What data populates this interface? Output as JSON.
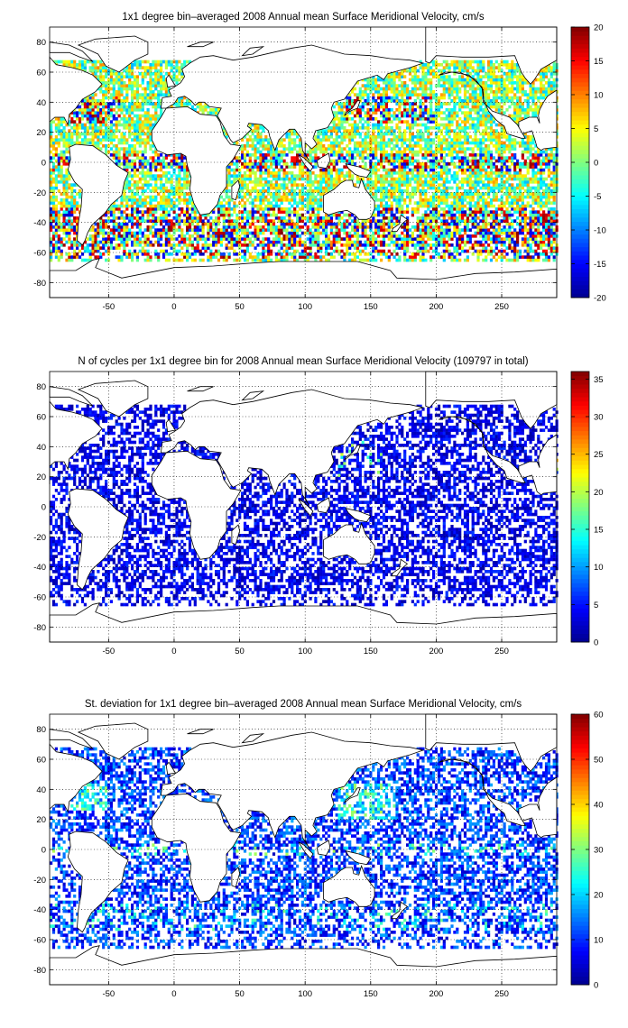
{
  "figure": {
    "colormap": "jet",
    "colormap_stops": [
      "#00008f",
      "#0000ff",
      "#0080ff",
      "#00ffff",
      "#80ff80",
      "#ffff00",
      "#ff8000",
      "#ff0000",
      "#800000"
    ],
    "land_color": "#ffffff",
    "coastline_color": "#000000"
  },
  "chart_data": [
    {
      "type": "heatmap",
      "title": "1x1 degree bin–averaged 2008 Annual mean Surface Meridional Velocity, cm/s",
      "xlim": [
        -95,
        292
      ],
      "ylim": [
        -90,
        90
      ],
      "xticks": [
        -50,
        0,
        50,
        100,
        150,
        200,
        250
      ],
      "yticks": [
        -80,
        -60,
        -40,
        -20,
        0,
        20,
        40,
        60,
        80
      ],
      "grid": true,
      "colorbar": {
        "range": [
          -20,
          20
        ],
        "ticks": [
          -20,
          -15,
          -10,
          -5,
          0,
          5,
          10,
          15,
          20
        ]
      }
    },
    {
      "type": "heatmap",
      "title": "N of cycles per 1x1 degree bin for 2008 Annual mean Surface Meridional Velocity (109797 in total)",
      "xlim": [
        -95,
        292
      ],
      "ylim": [
        -90,
        90
      ],
      "xticks": [
        -50,
        0,
        50,
        100,
        150,
        200,
        250
      ],
      "yticks": [
        -80,
        -60,
        -40,
        -20,
        0,
        20,
        40,
        60,
        80
      ],
      "grid": true,
      "colorbar": {
        "range": [
          0,
          36
        ],
        "ticks": [
          0,
          5,
          10,
          15,
          20,
          25,
          30,
          35
        ]
      }
    },
    {
      "type": "heatmap",
      "title": "St. deviation for 1x1 degree bin–averaged 2008 Annual mean Surface Meridional Velocity, cm/s",
      "xlim": [
        -95,
        292
      ],
      "ylim": [
        -90,
        90
      ],
      "xticks": [
        -50,
        0,
        50,
        100,
        150,
        200,
        250
      ],
      "yticks": [
        -80,
        -60,
        -40,
        -20,
        0,
        20,
        40,
        60,
        80
      ],
      "grid": true,
      "colorbar": {
        "range": [
          0,
          60
        ],
        "ticks": [
          0,
          10,
          20,
          30,
          40,
          50,
          60
        ]
      }
    }
  ]
}
